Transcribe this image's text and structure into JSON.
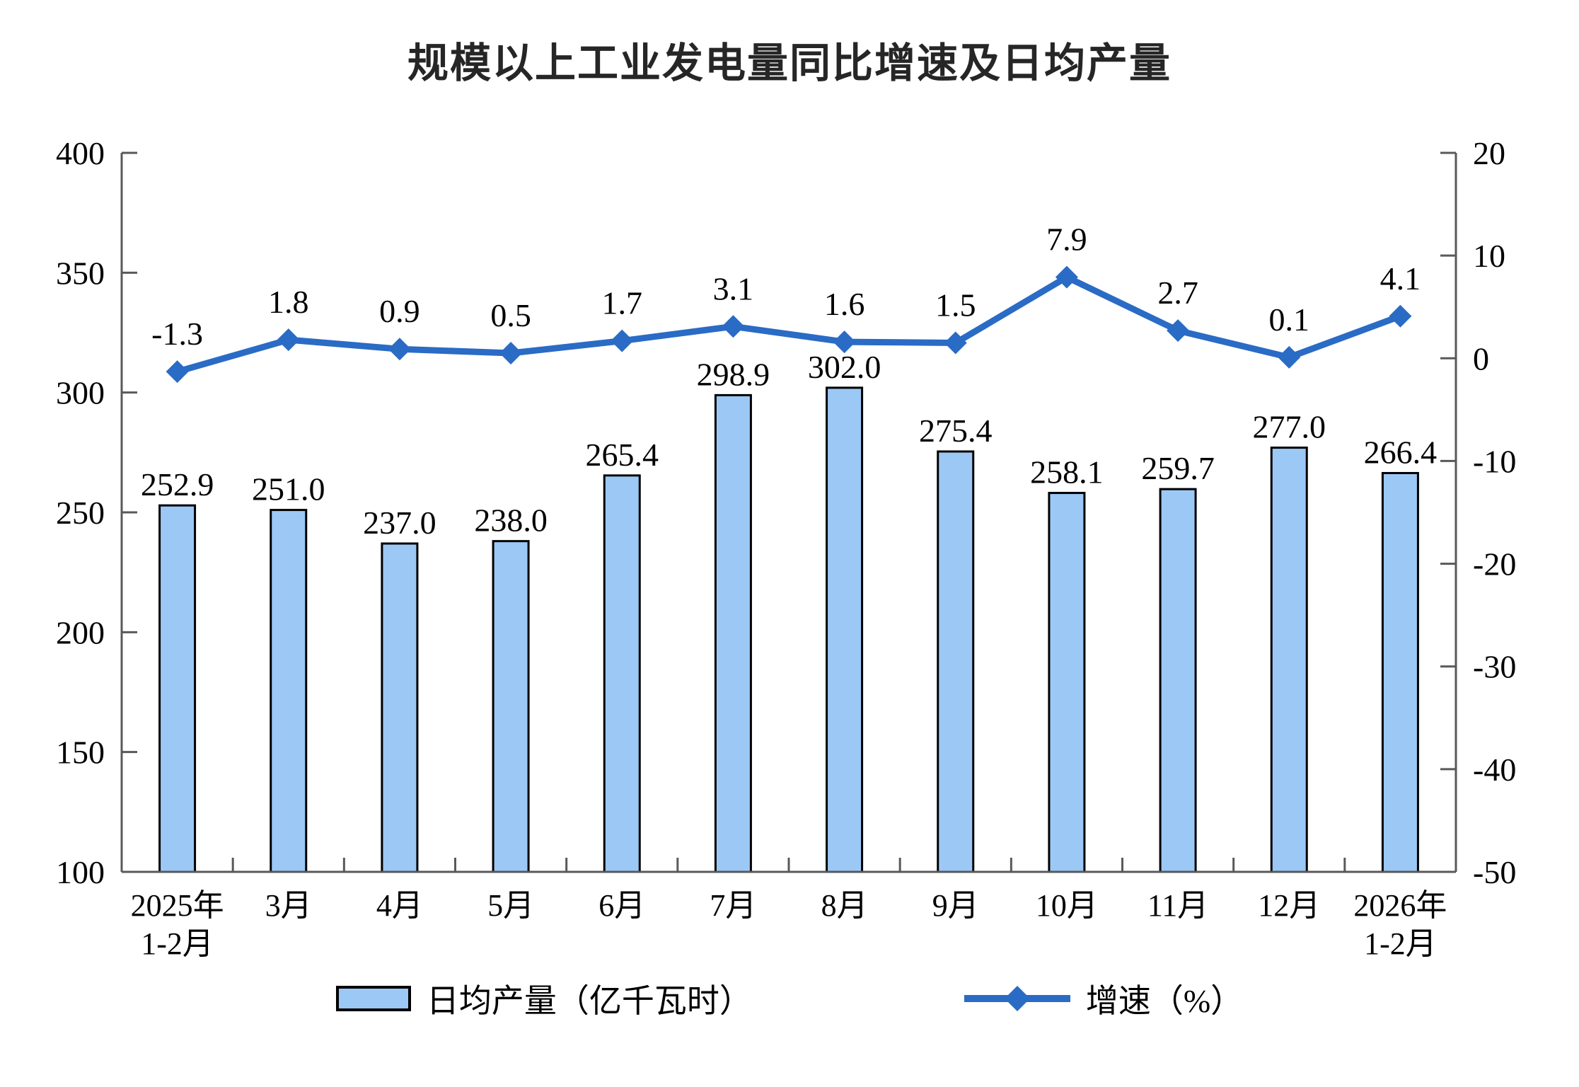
{
  "chart_data": {
    "type": "bar+line",
    "title": "规模以上工业发电量同比增速及日均产量",
    "categories": [
      "2025年\n1-2月",
      "3月",
      "4月",
      "5月",
      "6月",
      "7月",
      "8月",
      "9月",
      "10月",
      "11月",
      "12月",
      "2026年\n1-2月"
    ],
    "series": [
      {
        "name": "日均产量（亿千瓦时）",
        "type": "bar",
        "axis": "left",
        "values": [
          252.9,
          251.0,
          237.0,
          238.0,
          265.4,
          298.9,
          302.0,
          275.4,
          258.1,
          259.7,
          277.0,
          266.4
        ]
      },
      {
        "name": "增速（%）",
        "type": "line",
        "axis": "right",
        "values": [
          -1.3,
          1.8,
          0.9,
          0.5,
          1.7,
          3.1,
          1.6,
          1.5,
          7.9,
          2.7,
          0.1,
          4.1
        ]
      }
    ],
    "left_axis": {
      "min": 100,
      "max": 400,
      "step": 50,
      "ticks": [
        400,
        350,
        300,
        250,
        200,
        150,
        100
      ]
    },
    "right_axis": {
      "min": -50,
      "max": 20,
      "step": 10,
      "ticks": [
        20,
        10,
        0,
        -10,
        -20,
        -30,
        -40,
        -50
      ]
    },
    "legend": [
      "日均产量（亿千瓦时）",
      "增速（%）"
    ],
    "legend_position": "bottom",
    "grid": false,
    "colors": {
      "bar_fill": "#9CC8F5",
      "bar_border": "#000000",
      "line": "#2A6BC5",
      "axis": "#595959",
      "text": "#000000",
      "title": "#262626"
    }
  }
}
